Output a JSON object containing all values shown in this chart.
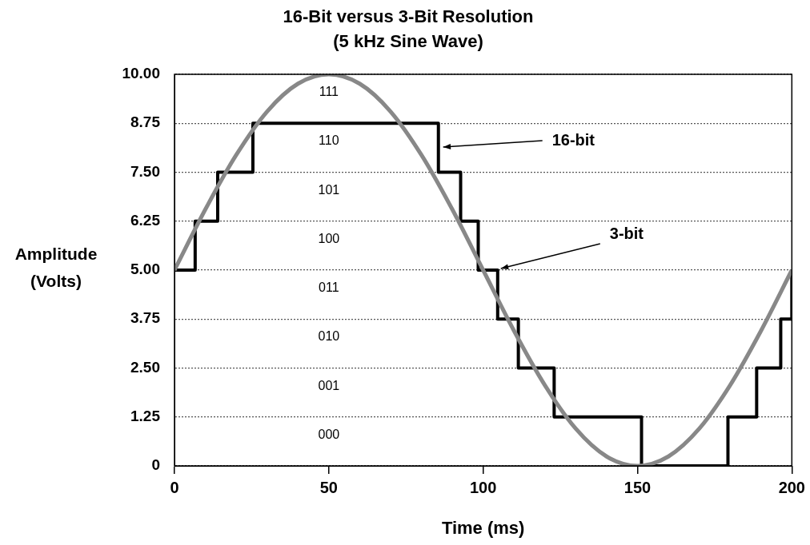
{
  "chart_data": {
    "type": "line",
    "title": "16-Bit versus 3-Bit Resolution",
    "subtitle": "(5 kHz Sine Wave)",
    "xlabel": "Time (ms)",
    "ylabel": "Amplitude (Volts)",
    "series": [
      {
        "type": "line",
        "color": "#888888",
        "x": [
          0,
          10,
          20,
          30,
          40,
          50,
          60,
          70,
          80,
          90,
          100,
          110,
          120,
          130,
          140,
          150,
          160,
          170,
          180,
          190,
          200
        ],
        "values": [
          5,
          6.55,
          7.94,
          9.05,
          9.76,
          10,
          9.76,
          9.05,
          7.94,
          6.55,
          5,
          3.45,
          2.06,
          0.95,
          0.24,
          0,
          0.24,
          0.95,
          2.06,
          3.45,
          5
        ]
      },
      {
        "type": "step",
        "color": "#000000",
        "x": [
          0,
          6.7,
          14,
          25.4,
          85.5,
          92.7,
          98.4,
          104.7,
          111.4,
          123,
          151.3,
          179.3,
          188.6,
          196.4,
          200
        ],
        "values": [
          5,
          6.25,
          7.5,
          8.75,
          7.5,
          6.25,
          5,
          3.75,
          2.5,
          1.25,
          0,
          1.25,
          2.5,
          3.75,
          5
        ]
      }
    ],
    "xlim": [
      0,
      200
    ],
    "xticks": [
      0,
      50,
      100,
      150,
      200
    ],
    "ylim": [
      0,
      10
    ],
    "yticks": [
      0,
      {
        "value": 1.25,
        "label": "1.25"
      },
      {
        "value": 2.5,
        "label": "2.50"
      },
      {
        "value": 3.75,
        "label": "3.75"
      },
      {
        "value": 5,
        "label": "5.00"
      },
      {
        "value": 6.25,
        "label": "6.25"
      },
      {
        "value": 7.5,
        "label": "7.50"
      },
      {
        "value": 8.75,
        "label": "8.75"
      },
      {
        "value": 10,
        "label": "10.00"
      }
    ],
    "grid": "y",
    "legend": false,
    "marker": "none",
    "annotations": [
      "111",
      "110",
      "101",
      "100",
      "011",
      "010",
      "001",
      "000",
      {
        "text": "16-bit",
        "x": 86,
        "y": 8.1
      },
      {
        "text": "3-bit",
        "x": 104.7,
        "y": 5
      }
    ]
  }
}
